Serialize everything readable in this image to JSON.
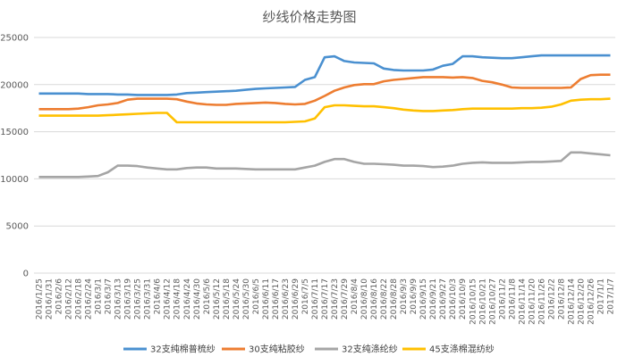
{
  "chart_data": {
    "type": "line",
    "title": "纱线价格走势图",
    "xlabel": "",
    "ylabel": "",
    "ylim": [
      0,
      25000
    ],
    "yticks": [
      "0",
      "5000",
      "10000",
      "15000",
      "20000",
      "25000"
    ],
    "grid": true,
    "legend_position": "bottom",
    "x": [
      "2016/1/25",
      "2016/1/31",
      "2016/2/6",
      "2016/2/12",
      "2016/2/18",
      "2016/2/24",
      "2016/3/1",
      "2016/3/7",
      "2016/3/13",
      "2016/3/19",
      "2016/3/25",
      "2016/3/31",
      "2016/4/6",
      "2016/4/12",
      "2016/4/18",
      "2016/4/24",
      "2016/4/30",
      "2016/5/6",
      "2016/5/12",
      "2016/5/18",
      "2016/5/24",
      "2016/5/30",
      "2016/6/5",
      "2016/6/11",
      "2016/6/17",
      "2016/6/23",
      "2016/6/29",
      "2016/7/5",
      "2016/7/11",
      "2016/7/17",
      "2016/7/23",
      "2016/7/29",
      "2016/8/4",
      "2016/8/10",
      "2016/8/16",
      "2016/8/22",
      "2016/8/28",
      "2016/9/3",
      "2016/9/9",
      "2016/9/15",
      "2016/9/21",
      "2016/9/27",
      "2016/10/3",
      "2016/10/9",
      "2016/10/15",
      "2016/10/21",
      "2016/10/27",
      "2016/11/2",
      "2016/11/8",
      "2016/11/14",
      "2016/11/20",
      "2016/11/26",
      "2016/12/2",
      "2016/12/8",
      "2016/12/14",
      "2016/12/20",
      "2016/12/26",
      "2017/1/1",
      "2017/1/7"
    ],
    "series": [
      {
        "name": "32支纯棉普梳纱",
        "color": "#4a90d0",
        "values": [
          19050,
          19050,
          19050,
          19050,
          19050,
          19000,
          19000,
          19000,
          18950,
          18950,
          18900,
          18900,
          18900,
          18900,
          18950,
          19100,
          19150,
          19200,
          19250,
          19300,
          19350,
          19450,
          19550,
          19600,
          19650,
          19700,
          19750,
          20500,
          20800,
          22900,
          23000,
          22500,
          22350,
          22300,
          22250,
          21700,
          21550,
          21500,
          21500,
          21500,
          21600,
          22000,
          22200,
          23000,
          23000,
          22900,
          22850,
          22800,
          22800,
          22900,
          23000,
          23100,
          23100,
          23100,
          23100,
          23100,
          23100,
          23100,
          23100
        ]
      },
      {
        "name": "30支纯粘胶纱",
        "color": "#ed7d31",
        "values": [
          17400,
          17400,
          17400,
          17400,
          17450,
          17600,
          17800,
          17900,
          18050,
          18400,
          18500,
          18500,
          18500,
          18500,
          18450,
          18200,
          18000,
          17900,
          17850,
          17850,
          17950,
          18000,
          18050,
          18100,
          18050,
          17950,
          17900,
          17950,
          18300,
          18800,
          19350,
          19700,
          19950,
          20050,
          20050,
          20350,
          20500,
          20600,
          20700,
          20800,
          20800,
          20800,
          20750,
          20800,
          20700,
          20400,
          20250,
          20000,
          19700,
          19650,
          19650,
          19650,
          19650,
          19650,
          19700,
          20600,
          21000,
          21050,
          21050
        ]
      },
      {
        "name": "32支纯涤纶纱",
        "color": "#a5a5a5",
        "values": [
          10200,
          10200,
          10200,
          10200,
          10200,
          10250,
          10300,
          10700,
          11400,
          11400,
          11350,
          11200,
          11100,
          11000,
          11000,
          11150,
          11200,
          11200,
          11100,
          11100,
          11100,
          11050,
          11000,
          11000,
          11000,
          11000,
          11000,
          11200,
          11400,
          11800,
          12100,
          12100,
          11800,
          11600,
          11600,
          11550,
          11500,
          11400,
          11400,
          11350,
          11250,
          11300,
          11400,
          11600,
          11700,
          11750,
          11700,
          11700,
          11700,
          11750,
          11800,
          11800,
          11850,
          11900,
          12800,
          12800,
          12700,
          12600,
          12500
        ]
      },
      {
        "name": "45支涤棉混纺纱",
        "color": "#ffc000",
        "values": [
          16700,
          16700,
          16700,
          16700,
          16700,
          16700,
          16700,
          16750,
          16800,
          16850,
          16900,
          16950,
          17000,
          17000,
          16000,
          16000,
          16000,
          16000,
          16000,
          16000,
          16000,
          16000,
          16000,
          16000,
          16000,
          16000,
          16050,
          16100,
          16400,
          17600,
          17800,
          17800,
          17750,
          17700,
          17700,
          17600,
          17500,
          17350,
          17250,
          17200,
          17200,
          17250,
          17300,
          17400,
          17450,
          17450,
          17450,
          17450,
          17450,
          17500,
          17500,
          17550,
          17650,
          17900,
          18300,
          18400,
          18450,
          18450,
          18500
        ]
      }
    ]
  }
}
